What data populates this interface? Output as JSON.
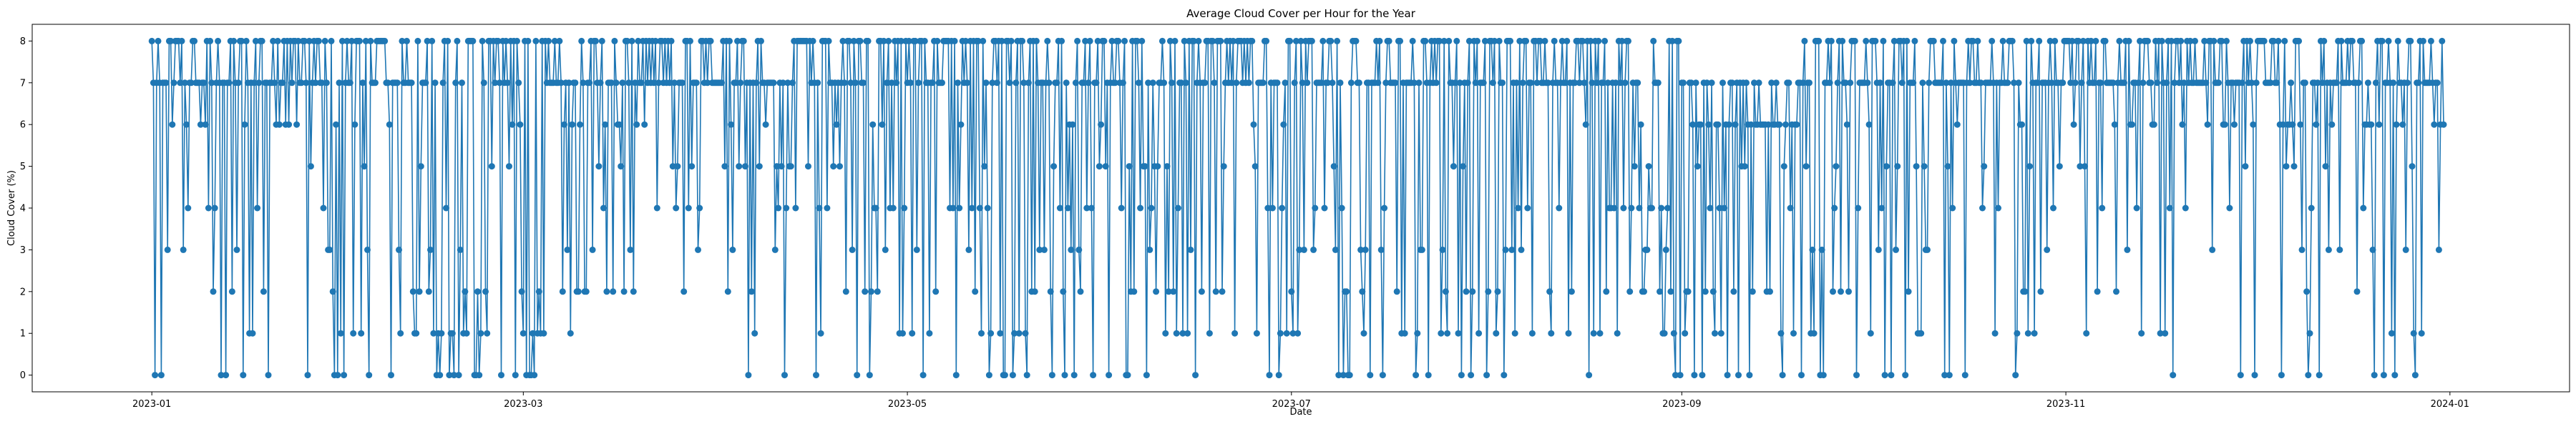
{
  "chart_data": {
    "type": "line",
    "title": "Average Cloud Cover per Hour for the Year",
    "xlabel": "Date",
    "ylabel": "Cloud Cover (%)",
    "xlim": [
      "2022-12-13",
      "2024-01-20"
    ],
    "ylim": [
      -0.4,
      8.4
    ],
    "x_ticks": [
      "2023-01",
      "2023-03",
      "2023-05",
      "2023-07",
      "2023-09",
      "2023-11",
      "2024-01"
    ],
    "y_ticks": [
      "0",
      "1",
      "2",
      "3",
      "4",
      "5",
      "6",
      "7",
      "8"
    ],
    "grid": false,
    "legend": "none",
    "marker": "circle",
    "series": [
      {
        "color": "#1f77b4",
        "sampling": "hourly",
        "x_start": "2023-01-01",
        "x_end": "2023-12-31",
        "value_range": [
          0,
          8
        ],
        "segments": [
          {
            "from": "2023-01-01",
            "to": "2023-02-10",
            "typical": [
              6,
              8
            ],
            "dips": [
              0,
              5
            ]
          },
          {
            "from": "2023-02-10",
            "to": "2023-03-10",
            "typical": [
              0,
              8
            ],
            "dips": [
              0,
              2
            ]
          },
          {
            "from": "2023-03-10",
            "to": "2023-04-05",
            "typical": [
              5,
              8
            ],
            "dips": [
              2,
              4
            ]
          },
          {
            "from": "2023-04-05",
            "to": "2023-06-15",
            "typical": [
              0,
              8
            ],
            "dips": [
              0,
              5
            ]
          },
          {
            "from": "2023-06-15",
            "to": "2023-08-10",
            "typical": [
              0,
              8
            ],
            "dips": [
              0,
              3
            ]
          },
          {
            "from": "2023-08-10",
            "to": "2023-09-01",
            "typical": [
              0,
              8
            ],
            "dips": [
              0,
              4
            ]
          },
          {
            "from": "2023-09-01",
            "to": "2023-09-20",
            "typical": [
              0,
              7
            ],
            "dips": [
              0,
              2
            ]
          },
          {
            "from": "2023-09-20",
            "to": "2023-10-20",
            "typical": [
              0,
              8
            ],
            "dips": [
              0,
              5
            ]
          },
          {
            "from": "2023-10-20",
            "to": "2023-12-31",
            "typical": [
              6,
              8
            ],
            "dips": [
              0,
              5
            ]
          }
        ]
      }
    ]
  }
}
